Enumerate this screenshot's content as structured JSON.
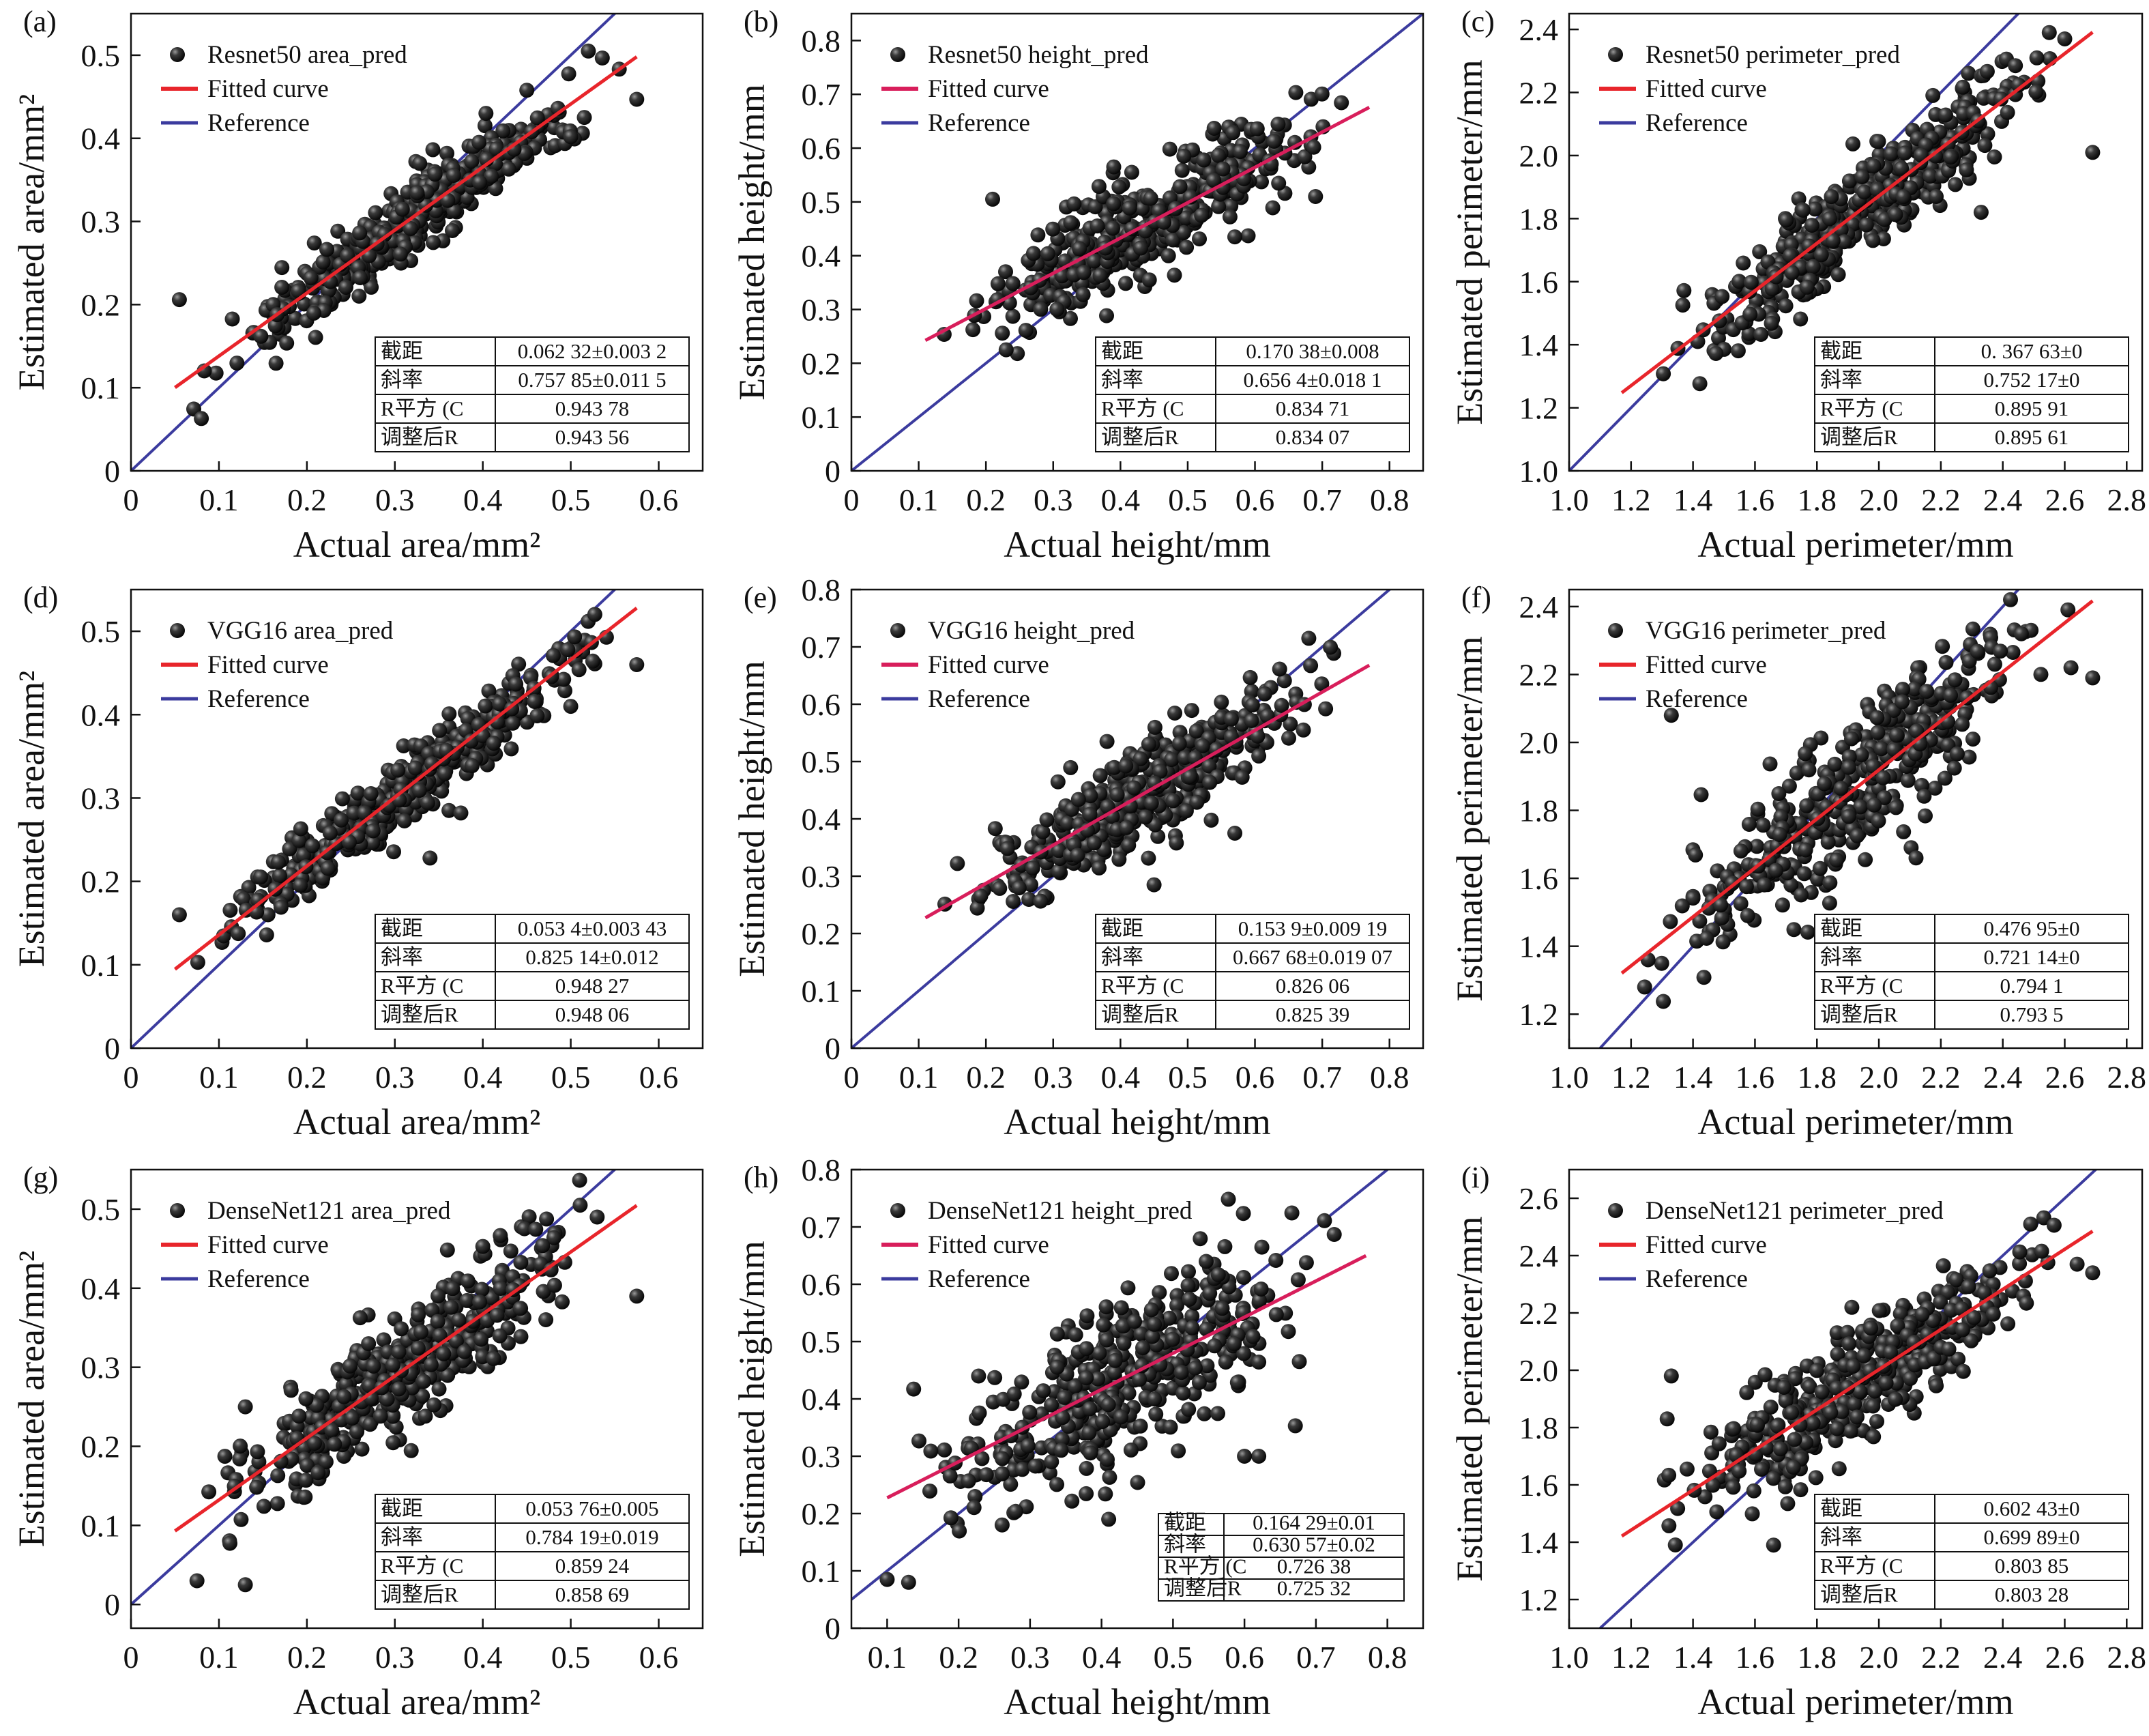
{
  "colors": {
    "points": "#1a1a1a",
    "fit": "#e8252b",
    "reference": "#3b3b9e",
    "fit_alt": "#d81e5b"
  },
  "chart_data": [
    {
      "id": "a",
      "type": "scatter",
      "panel_label": "(a)",
      "xlabel": "Actual area/mm²",
      "ylabel": "Estimated area/mm²",
      "xlim": [
        0,
        0.65
      ],
      "ylim": [
        0,
        0.55
      ],
      "xticks": [
        0,
        0.1,
        0.2,
        0.3,
        0.4,
        0.5,
        0.6
      ],
      "yticks": [
        0,
        0.1,
        0.2,
        0.3,
        0.4,
        0.5
      ],
      "x_tick_labels": [
        "0",
        "0.1",
        "0.2",
        "0.3",
        "0.4",
        "0.5",
        "0.6"
      ],
      "y_tick_labels": [
        "0",
        "0.1",
        "0.2",
        "0.3",
        "0.4",
        "0.5"
      ],
      "legend": [
        "Resnet50 area_pred",
        "Fitted curve",
        "Reference"
      ],
      "fit": {
        "intercept": 0.06232,
        "slope": 0.75785,
        "x_range": [
          0.05,
          0.575
        ]
      },
      "points": {
        "n": 420,
        "x_range": [
          0.05,
          0.575
        ],
        "noise": 0.022,
        "seed": 11
      },
      "outliers": [
        [
          0.055,
          0.206
        ],
        [
          0.08,
          0.063
        ],
        [
          0.575,
          0.447
        ],
        [
          0.52,
          0.505
        ],
        [
          0.5,
          0.402
        ]
      ],
      "table_pos": "bottom-right",
      "table": [
        [
          "截距",
          "0.062 32±0.003 2"
        ],
        [
          "斜率",
          "0.757 85±0.011 5"
        ],
        [
          "R平方 (C",
          "0.943 78"
        ],
        [
          "调整后R",
          "0.943 56"
        ]
      ]
    },
    {
      "id": "b",
      "type": "scatter",
      "panel_label": "(b)",
      "xlabel": "Actual height/mm",
      "ylabel": "Estimated height/mm",
      "xlim": [
        0,
        0.85
      ],
      "ylim": [
        0,
        0.85
      ],
      "xticks": [
        0,
        0.1,
        0.2,
        0.3,
        0.4,
        0.5,
        0.6,
        0.7,
        0.8
      ],
      "yticks": [
        0,
        0.1,
        0.2,
        0.3,
        0.4,
        0.5,
        0.6,
        0.7,
        0.8
      ],
      "x_tick_labels": [
        "0",
        "0.1",
        "0.2",
        "0.3",
        "0.4",
        "0.5",
        "0.6",
        "0.7",
        "0.8"
      ],
      "y_tick_labels": [
        "0",
        "0.1",
        "0.2",
        "0.3",
        "0.4",
        "0.5",
        "0.6",
        "0.7",
        "0.8"
      ],
      "legend": [
        "Resnet50 height_pred",
        "Fitted curve",
        "Reference"
      ],
      "fit": {
        "intercept": 0.17038,
        "slope": 0.6564,
        "x_range": [
          0.11,
          0.77
        ]
      },
      "points": {
        "n": 420,
        "x_range": [
          0.11,
          0.77
        ],
        "noise": 0.045,
        "seed": 23
      },
      "outliers": [
        [
          0.21,
          0.505
        ],
        [
          0.23,
          0.225
        ],
        [
          0.39,
          0.565
        ],
        [
          0.57,
          0.435
        ],
        [
          0.69,
          0.51
        ]
      ],
      "table_pos": "bottom-right",
      "table": [
        [
          "截距",
          "0.170 38±0.008"
        ],
        [
          "斜率",
          "0.656 4±0.018 1"
        ],
        [
          "R平方 (C",
          "0.834 71"
        ],
        [
          "调整后R",
          "0.834 07"
        ]
      ]
    },
    {
      "id": "c",
      "type": "scatter",
      "panel_label": "(c)",
      "xlabel": "Actual perimeter/mm",
      "ylabel": "Estimated perimeter/mm",
      "xlim": [
        1.0,
        2.85
      ],
      "ylim": [
        1.0,
        2.45
      ],
      "xticks": [
        1.0,
        1.2,
        1.4,
        1.6,
        1.8,
        2.0,
        2.2,
        2.4,
        2.6,
        2.8
      ],
      "yticks": [
        1.0,
        1.2,
        1.4,
        1.6,
        1.8,
        2.0,
        2.2,
        2.4
      ],
      "x_tick_labels": [
        "1.0",
        "1.2",
        "1.4",
        "1.6",
        "1.8",
        "2.0",
        "2.2",
        "2.4",
        "2.6",
        "2.8"
      ],
      "y_tick_labels": [
        "1.0",
        "1.2",
        "1.4",
        "1.6",
        "1.8",
        "2.0",
        "2.2",
        "2.4"
      ],
      "legend": [
        "Resnet50 perimeter_pred",
        "Fitted curve",
        "Reference"
      ],
      "fit": {
        "intercept": 0.36763,
        "slope": 0.75217,
        "x_range": [
          1.17,
          2.69
        ]
      },
      "points": {
        "n": 420,
        "x_range": [
          1.17,
          2.69
        ],
        "noise": 0.075,
        "seed": 37
      },
      "outliers": [
        [
          2.69,
          2.01
        ],
        [
          2.33,
          1.82
        ],
        [
          2.55,
          2.39
        ],
        [
          2.6,
          2.37
        ]
      ],
      "table_pos": "bottom-right",
      "table": [
        [
          "截距",
          "0. 367 63±0"
        ],
        [
          "斜率",
          "0.752 17±0"
        ],
        [
          "R平方 (C",
          "0.895 91"
        ],
        [
          "调整后R",
          "0.895 61"
        ]
      ]
    },
    {
      "id": "d",
      "type": "scatter",
      "panel_label": "(d)",
      "xlabel": "Actual area/mm²",
      "ylabel": "Estimated area/mm²",
      "xlim": [
        0,
        0.65
      ],
      "ylim": [
        0,
        0.55
      ],
      "xticks": [
        0,
        0.1,
        0.2,
        0.3,
        0.4,
        0.5,
        0.6
      ],
      "yticks": [
        0,
        0.1,
        0.2,
        0.3,
        0.4,
        0.5
      ],
      "x_tick_labels": [
        "0",
        "0.1",
        "0.2",
        "0.3",
        "0.4",
        "0.5",
        "0.6"
      ],
      "y_tick_labels": [
        "0",
        "0.1",
        "0.2",
        "0.3",
        "0.4",
        "0.5"
      ],
      "legend": [
        "VGG16 area_pred",
        "Fitted curve",
        "Reference"
      ],
      "fit": {
        "intercept": 0.0534,
        "slope": 0.82514,
        "x_range": [
          0.05,
          0.575
        ]
      },
      "points": {
        "n": 420,
        "x_range": [
          0.05,
          0.575
        ],
        "noise": 0.022,
        "seed": 41
      },
      "outliers": [
        [
          0.055,
          0.16
        ],
        [
          0.34,
          0.228
        ],
        [
          0.375,
          0.282
        ],
        [
          0.575,
          0.46
        ],
        [
          0.5,
          0.41
        ]
      ],
      "table_pos": "bottom-right",
      "table": [
        [
          "截距",
          "0.053 4±0.003 43"
        ],
        [
          "斜率",
          "0.825 14±0.012"
        ],
        [
          "R平方 (C",
          "0.948 27"
        ],
        [
          "调整后R",
          "0.948 06"
        ]
      ]
    },
    {
      "id": "e",
      "type": "scatter",
      "panel_label": "(e)",
      "xlabel": "Actual height/mm",
      "ylabel": "Estimated height/mm",
      "xlim": [
        0,
        0.85
      ],
      "ylim": [
        0,
        0.8
      ],
      "xticks": [
        0,
        0.1,
        0.2,
        0.3,
        0.4,
        0.5,
        0.6,
        0.7,
        0.8
      ],
      "yticks": [
        0,
        0.1,
        0.2,
        0.3,
        0.4,
        0.5,
        0.6,
        0.7,
        0.8
      ],
      "x_tick_labels": [
        "0",
        "0.1",
        "0.2",
        "0.3",
        "0.4",
        "0.5",
        "0.6",
        "0.7",
        "0.8"
      ],
      "y_tick_labels": [
        "0",
        "0.1",
        "0.2",
        "0.3",
        "0.4",
        "0.5",
        "0.6",
        "0.7",
        "0.8"
      ],
      "legend": [
        "VGG16 height_pred",
        "Fitted curve",
        "Reference"
      ],
      "fit": {
        "intercept": 0.1539,
        "slope": 0.66768,
        "x_range": [
          0.11,
          0.77
        ]
      },
      "points": {
        "n": 420,
        "x_range": [
          0.11,
          0.77
        ],
        "noise": 0.045,
        "seed": 53
      },
      "outliers": [
        [
          0.38,
          0.535
        ],
        [
          0.45,
          0.285
        ],
        [
          0.57,
          0.375
        ],
        [
          0.68,
          0.715
        ]
      ],
      "table_pos": "bottom-right",
      "table": [
        [
          "截距",
          "0.153 9±0.009 19"
        ],
        [
          "斜率",
          "0.667 68±0.019 07"
        ],
        [
          "R平方 (C",
          "0.826 06"
        ],
        [
          "调整后R",
          "0.825 39"
        ]
      ]
    },
    {
      "id": "f",
      "type": "scatter",
      "panel_label": "(f)",
      "xlabel": "Actual perimeter/mm",
      "ylabel": "Estimated perimeter/mm",
      "xlim": [
        1.0,
        2.85
      ],
      "ylim": [
        1.1,
        2.45
      ],
      "xticks": [
        1.0,
        1.2,
        1.4,
        1.6,
        1.8,
        2.0,
        2.2,
        2.4,
        2.6,
        2.8
      ],
      "yticks": [
        1.2,
        1.4,
        1.6,
        1.8,
        2.0,
        2.2,
        2.4
      ],
      "x_tick_labels": [
        "1.0",
        "1.2",
        "1.4",
        "1.6",
        "1.8",
        "2.0",
        "2.2",
        "2.4",
        "2.6",
        "2.8"
      ],
      "y_tick_labels": [
        "1.2",
        "1.4",
        "1.6",
        "1.8",
        "2.0",
        "2.2",
        "2.4"
      ],
      "legend": [
        "VGG16 perimeter_pred",
        "Fitted curve",
        "Reference"
      ],
      "fit": {
        "intercept": 0.47695,
        "slope": 0.72114,
        "x_range": [
          1.17,
          2.69
        ]
      },
      "points": {
        "n": 420,
        "x_range": [
          1.17,
          2.69
        ],
        "noise": 0.1,
        "seed": 67
      },
      "outliers": [
        [
          1.33,
          2.08
        ],
        [
          2.12,
          1.66
        ],
        [
          2.69,
          2.19
        ],
        [
          2.62,
          2.22
        ],
        [
          2.46,
          2.32
        ]
      ],
      "table_pos": "bottom-right",
      "table": [
        [
          "截距",
          "0.476 95±0"
        ],
        [
          "斜率",
          "0.721 14±0"
        ],
        [
          "R平方 (C",
          "0.794 1"
        ],
        [
          "调整后R",
          "0.793 5"
        ]
      ]
    },
    {
      "id": "g",
      "type": "scatter",
      "panel_label": "(g)",
      "xlabel": "Actual area/mm²",
      "ylabel": "Estimated area/mm²",
      "xlim": [
        0,
        0.65
      ],
      "ylim": [
        -0.03,
        0.55
      ],
      "xticks": [
        0,
        0.1,
        0.2,
        0.3,
        0.4,
        0.5,
        0.6
      ],
      "yticks": [
        0,
        0.1,
        0.2,
        0.3,
        0.4,
        0.5
      ],
      "x_tick_labels": [
        "0",
        "0.1",
        "0.2",
        "0.3",
        "0.4",
        "0.5",
        "0.6"
      ],
      "y_tick_labels": [
        "0",
        "0.1",
        "0.2",
        "0.3",
        "0.4",
        "0.5"
      ],
      "legend": [
        "DenseNet121 area_pred",
        "Fitted curve",
        "Reference"
      ],
      "fit": {
        "intercept": 0.05376,
        "slope": 0.78419,
        "x_range": [
          0.05,
          0.575
        ]
      },
      "points": {
        "n": 440,
        "x_range": [
          0.05,
          0.575
        ],
        "noise": 0.035,
        "seed": 79
      },
      "outliers": [
        [
          0.13,
          0.025
        ],
        [
          0.075,
          0.03
        ],
        [
          0.575,
          0.39
        ],
        [
          0.53,
          0.49
        ],
        [
          0.13,
          0.25
        ]
      ],
      "table_pos": "bottom-right",
      "table": [
        [
          "截距",
          "0.053 76±0.005"
        ],
        [
          "斜率",
          "0.784 19±0.019"
        ],
        [
          "R平方 (C",
          "0.859 24"
        ],
        [
          "调整后R",
          "0.858 69"
        ]
      ]
    },
    {
      "id": "h",
      "type": "scatter",
      "panel_label": "(h)",
      "xlabel": "Actual height/mm",
      "ylabel": "Estimated height/mm",
      "xlim": [
        0.05,
        0.85
      ],
      "ylim": [
        0,
        0.8
      ],
      "xticks": [
        0.1,
        0.2,
        0.3,
        0.4,
        0.5,
        0.6,
        0.7,
        0.8
      ],
      "yticks": [
        0,
        0.1,
        0.2,
        0.3,
        0.4,
        0.5,
        0.6,
        0.7,
        0.8
      ],
      "x_tick_labels": [
        "0.1",
        "0.2",
        "0.3",
        "0.4",
        "0.5",
        "0.6",
        "0.7",
        "0.8"
      ],
      "y_tick_labels": [
        "0",
        "0.1",
        "0.2",
        "0.3",
        "0.4",
        "0.5",
        "0.6",
        "0.7",
        "0.8"
      ],
      "legend": [
        "DenseNet121 height_pred",
        "Fitted curve",
        "Reference"
      ],
      "fit": {
        "intercept": 0.16429,
        "slope": 0.63057,
        "x_range": [
          0.1,
          0.77
        ]
      },
      "points": {
        "n": 440,
        "x_range": [
          0.1,
          0.77
        ],
        "noise": 0.07,
        "seed": 83
      },
      "outliers": [
        [
          0.1,
          0.085
        ],
        [
          0.13,
          0.08
        ],
        [
          0.62,
          0.3
        ],
        [
          0.6,
          0.3
        ],
        [
          0.41,
          0.19
        ]
      ],
      "table_pos": "bottom-right",
      "table_small": true,
      "table": [
        [
          "截距",
          "0.164 29±0.01"
        ],
        [
          "斜率",
          "0.630 57±0.02"
        ],
        [
          "R平方 (C",
          "0.726 38"
        ],
        [
          "调整后R",
          "0.725 32"
        ]
      ]
    },
    {
      "id": "i",
      "type": "scatter",
      "panel_label": "(i)",
      "xlabel": "Actual perimeter/mm",
      "ylabel": "Estimated perimeter/mm",
      "xlim": [
        1.0,
        2.85
      ],
      "ylim": [
        1.1,
        2.7
      ],
      "xticks": [
        1.0,
        1.2,
        1.4,
        1.6,
        1.8,
        2.0,
        2.2,
        2.4,
        2.6,
        2.8
      ],
      "yticks": [
        1.2,
        1.4,
        1.6,
        1.8,
        2.0,
        2.2,
        2.4,
        2.6
      ],
      "x_tick_labels": [
        "1.0",
        "1.2",
        "1.4",
        "1.6",
        "1.8",
        "2.0",
        "2.2",
        "2.4",
        "2.6",
        "2.8"
      ],
      "y_tick_labels": [
        "1.2",
        "1.4",
        "1.6",
        "1.8",
        "2.0",
        "2.2",
        "2.4",
        "2.6"
      ],
      "legend": [
        "DenseNet121 perimeter_pred",
        "Fitted curve",
        "Reference"
      ],
      "fit": {
        "intercept": 0.60243,
        "slope": 0.69989,
        "x_range": [
          1.17,
          2.69
        ]
      },
      "points": {
        "n": 440,
        "x_range": [
          1.17,
          2.69
        ],
        "noise": 0.1,
        "seed": 97
      },
      "outliers": [
        [
          1.33,
          1.98
        ],
        [
          1.66,
          1.39
        ],
        [
          2.49,
          2.51
        ],
        [
          2.69,
          2.34
        ],
        [
          2.64,
          2.37
        ]
      ],
      "table_pos": "bottom-right",
      "table": [
        [
          "截距",
          "0.602 43±0"
        ],
        [
          "斜率",
          "0.699 89±0"
        ],
        [
          "R平方 (C",
          "0.803 85"
        ],
        [
          "调整后R",
          "0.803 28"
        ]
      ]
    }
  ]
}
